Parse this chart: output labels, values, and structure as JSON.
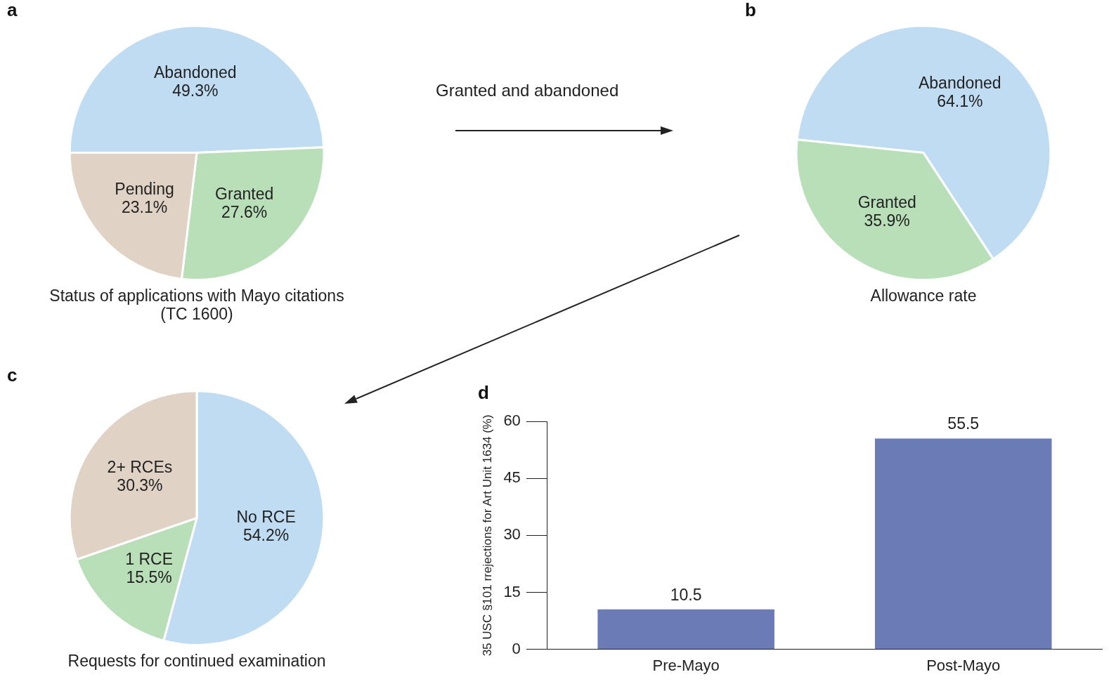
{
  "chart_data": [
    {
      "type": "pie",
      "title": "a",
      "categories": [
        "Abandoned",
        "Granted",
        "Pending"
      ],
      "values": [
        49.3,
        27.6,
        23.1
      ],
      "colors": [
        "#bfdcf2",
        "#b9dfb9",
        "#e0d3c6"
      ],
      "value_labels": [
        "49.3%",
        "27.6%",
        "23.1%"
      ],
      "legend": false,
      "annotations": [
        "Status of applications with Mayo citations (TC 1600)",
        "Granted and abandoned"
      ]
    },
    {
      "type": "pie",
      "title": "b",
      "categories": [
        "Abandoned",
        "Granted"
      ],
      "values": [
        64.1,
        35.9
      ],
      "colors": [
        "#bfdcf2",
        "#b9dfb9"
      ],
      "value_labels": [
        "64.1%",
        "35.9%"
      ],
      "legend": false,
      "annotations": [
        "Allowance rate"
      ]
    },
    {
      "type": "pie",
      "title": "c",
      "categories": [
        "No RCE",
        "1 RCE",
        "2+ RCEs"
      ],
      "values": [
        54.2,
        15.5,
        30.3
      ],
      "colors": [
        "#bfdcf2",
        "#b9dfb9",
        "#e0d3c6"
      ],
      "value_labels": [
        "54.2%",
        "15.5%",
        "30.3%"
      ],
      "legend": false,
      "annotations": [
        "Requests for continued examination"
      ]
    },
    {
      "type": "bar",
      "title": "d",
      "categories": [
        "Pre-Mayo",
        "Post-Mayo"
      ],
      "values": [
        10.5,
        55.5
      ],
      "color": "#6b7bb6",
      "ylim": [
        0,
        60
      ],
      "yticks": [
        0,
        15,
        30,
        45,
        60
      ],
      "ylabel": "35 USC §101 rrejections for Art Unit 1634 (%)",
      "data_labels": true,
      "grid": false,
      "legend": false
    }
  ]
}
